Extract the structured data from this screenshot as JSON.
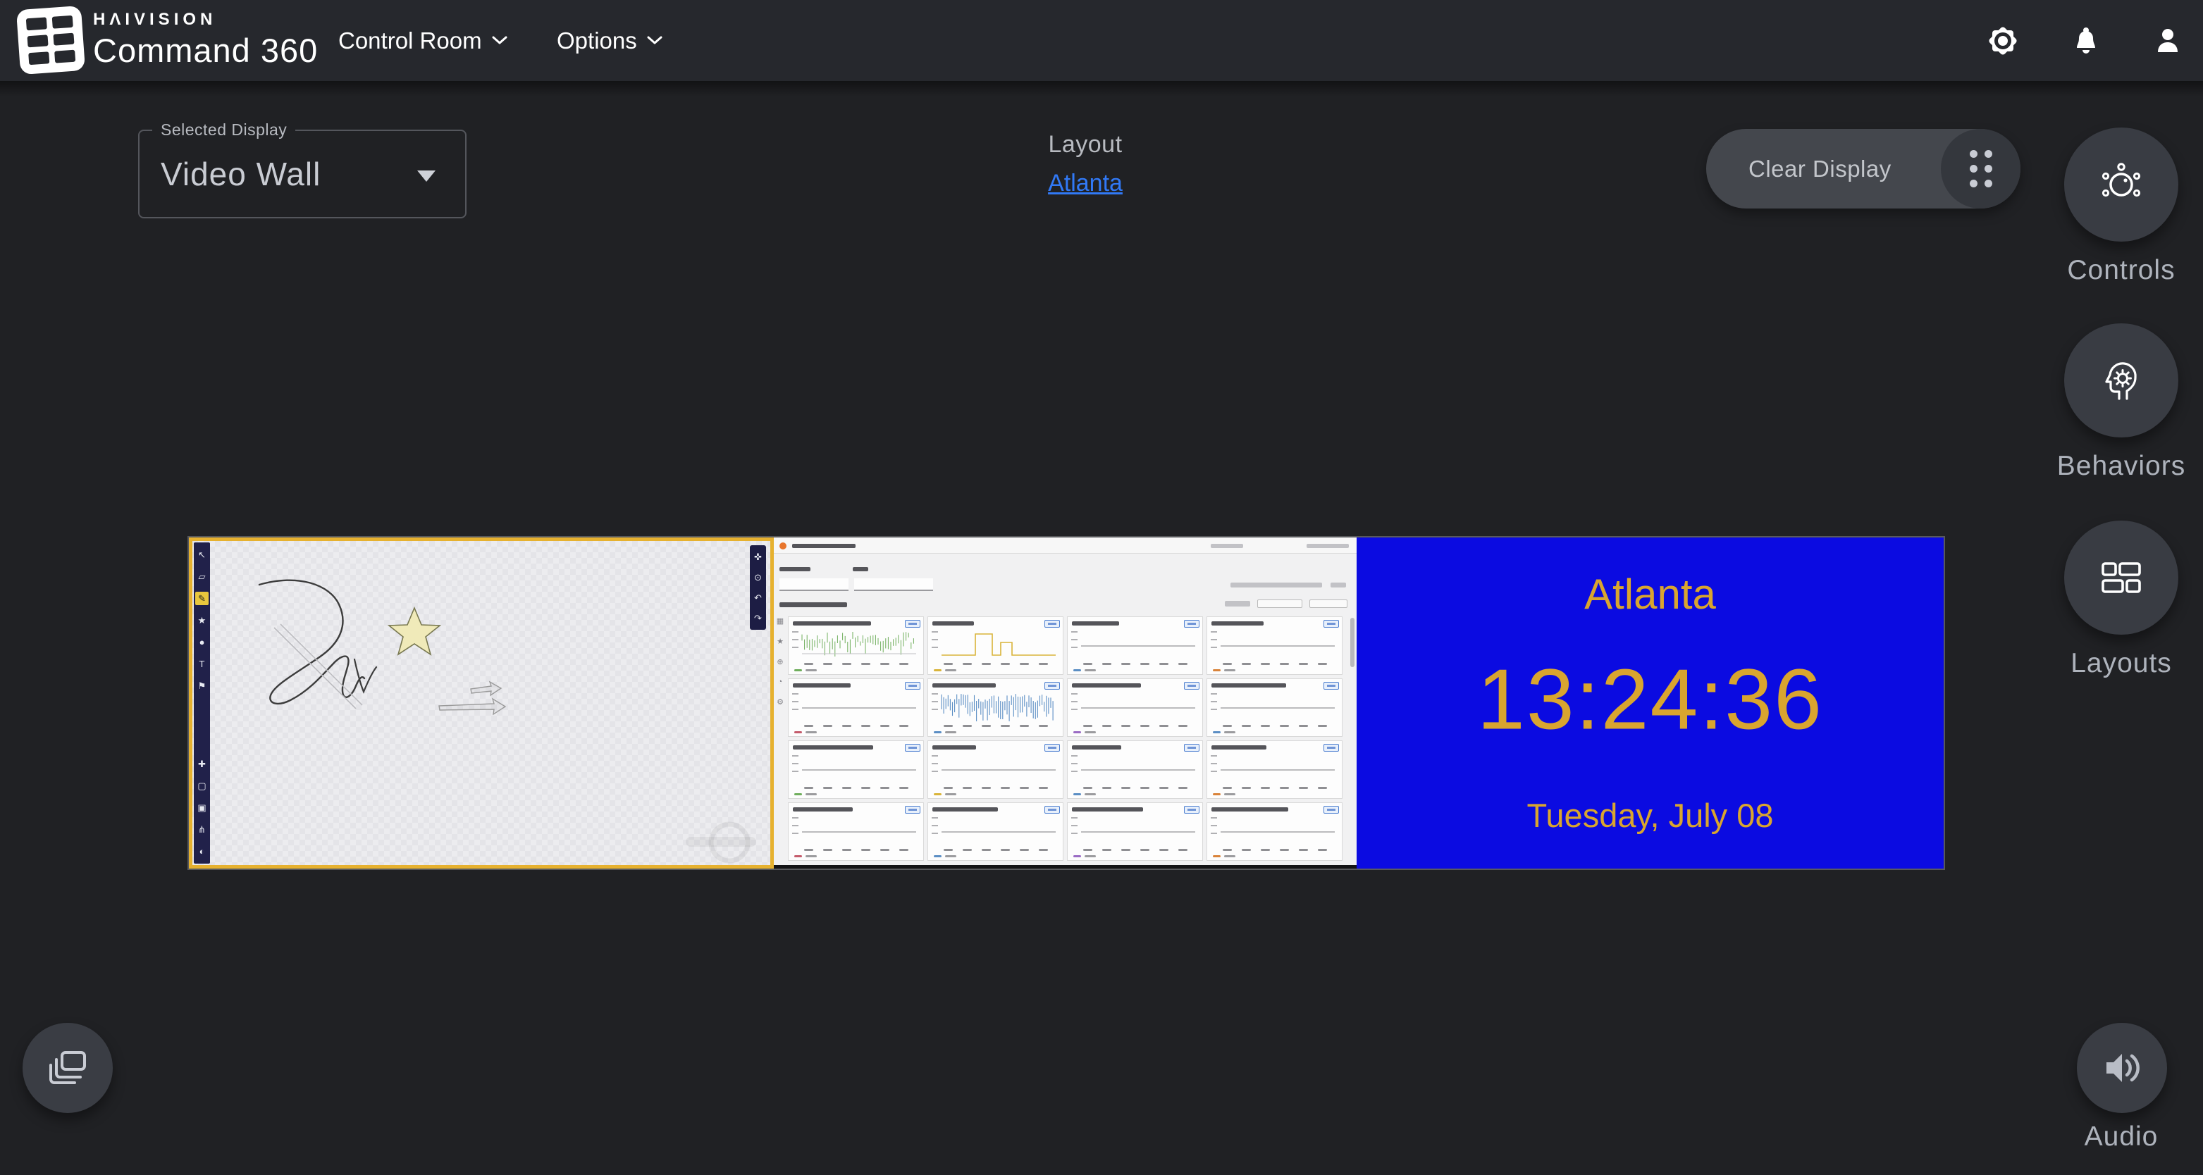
{
  "topbar": {
    "brand_small": "HΛIVISION",
    "brand_large": "Command 360",
    "menus": [
      {
        "label": "Control Room"
      },
      {
        "label": "Options"
      }
    ],
    "icons": [
      "settings-icon",
      "notifications-icon",
      "user-icon"
    ]
  },
  "display_selector": {
    "label": "Selected Display",
    "value": "Video Wall"
  },
  "layout_section": {
    "label": "Layout",
    "selected_layout": "Atlanta",
    "link_color": "#3179f6"
  },
  "toolbar": {
    "clear_display_label": "Clear Display"
  },
  "rail": {
    "items": [
      {
        "label": "Controls"
      },
      {
        "label": "Behaviors"
      },
      {
        "label": "Layouts"
      }
    ],
    "audio_label": "Audio"
  },
  "wall": {
    "selected_panel": "whiteboard",
    "selection_color": "#e6b12f",
    "panels": [
      "whiteboard",
      "dashboard",
      "clock"
    ]
  },
  "whiteboard": {
    "tools_top": [
      "↖",
      "▱",
      "✎",
      "★",
      "●",
      "T",
      "⚑"
    ],
    "selected_tool_index": 2,
    "tools_bottom": [
      "✚",
      "▢",
      "▣",
      "⋔",
      "◐"
    ],
    "zoom_tools": [
      "✜",
      "⊙",
      "↶",
      "↷"
    ]
  },
  "dashboard": {
    "accent": "#e8762d",
    "panels": [
      {
        "legend": "#6fae5c",
        "style": "noise"
      },
      {
        "legend": "#d9b43a",
        "style": "steps"
      },
      {
        "legend": "#5b8ec4",
        "style": "flat"
      },
      {
        "legend": "#d9833a",
        "style": "flat"
      },
      {
        "legend": "#c45b6b",
        "style": "flat"
      },
      {
        "legend": "#5b8ec4",
        "style": "wave"
      },
      {
        "legend": "#9a6bc4",
        "style": "flat"
      },
      {
        "legend": "#5b8ec4",
        "style": "flat"
      },
      {
        "legend": "#6fae5c",
        "style": "flat"
      },
      {
        "legend": "#d9b43a",
        "style": "flat"
      },
      {
        "legend": "#5b8ec4",
        "style": "flat"
      },
      {
        "legend": "#d9833a",
        "style": "flat"
      },
      {
        "legend": "#c45b6b",
        "style": "flat"
      },
      {
        "legend": "#5b8ec4",
        "style": "flat"
      },
      {
        "legend": "#9a6bc4",
        "style": "flat"
      },
      {
        "legend": "#d9833a",
        "style": "flat"
      }
    ]
  },
  "clock": {
    "city": "Atlanta",
    "time": "13:24:36",
    "date": "Tuesday, July 08",
    "bg": "#0b0be1",
    "fg": "#d9a52f"
  }
}
